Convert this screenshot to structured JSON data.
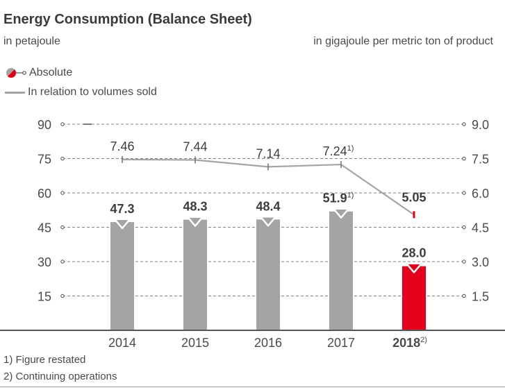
{
  "header": {
    "title": "Energy Consumption (Balance Sheet)",
    "left_unit": "in petajoule",
    "right_unit": "in gigajoule per metric ton of product"
  },
  "legend": {
    "absolute": "Absolute",
    "relative": "In relation to volumes sold"
  },
  "footnotes": {
    "note1": "1) Figure restated",
    "note2": "2) Continuing operations"
  },
  "colors": {
    "bar": "#a4a4a4",
    "highlight": "#e2001a",
    "line": "#a4a4a4",
    "grid": "#555555",
    "text": "#4a4a4a"
  },
  "chart_data": {
    "type": "bar",
    "title": "Energy Consumption (Balance Sheet)",
    "categories": [
      "2014",
      "2015",
      "2016",
      "2017",
      "2018"
    ],
    "category_superscripts": [
      "",
      "",
      "",
      "",
      "2)"
    ],
    "highlight_index": 4,
    "y_left": {
      "label": "in petajoule",
      "range": [
        0,
        90
      ],
      "ticks": [
        15,
        30,
        45,
        60,
        75,
        90
      ]
    },
    "y_right": {
      "label": "in gigajoule per metric ton of product",
      "range": [
        0,
        9.0
      ],
      "ticks": [
        "1.5",
        "3.0",
        "4.5",
        "6.0",
        "7.5",
        "9.0"
      ]
    },
    "series": [
      {
        "name": "Absolute",
        "type": "bar",
        "axis": "left",
        "values": [
          47.3,
          48.3,
          48.4,
          51.9,
          28.0
        ],
        "labels": [
          "47.3",
          "48.3",
          "48.4",
          "51.9",
          "28.0"
        ],
        "label_superscripts": [
          "",
          "",
          "",
          "1)",
          ""
        ]
      },
      {
        "name": "In relation to volumes sold",
        "type": "line",
        "axis": "right",
        "values": [
          7.46,
          7.44,
          7.14,
          7.24,
          5.05
        ],
        "labels": [
          "7.46",
          "7.44",
          "7.14",
          "7.24",
          "5.05"
        ],
        "label_superscripts": [
          "",
          "",
          "",
          "1)",
          ""
        ]
      }
    ]
  }
}
